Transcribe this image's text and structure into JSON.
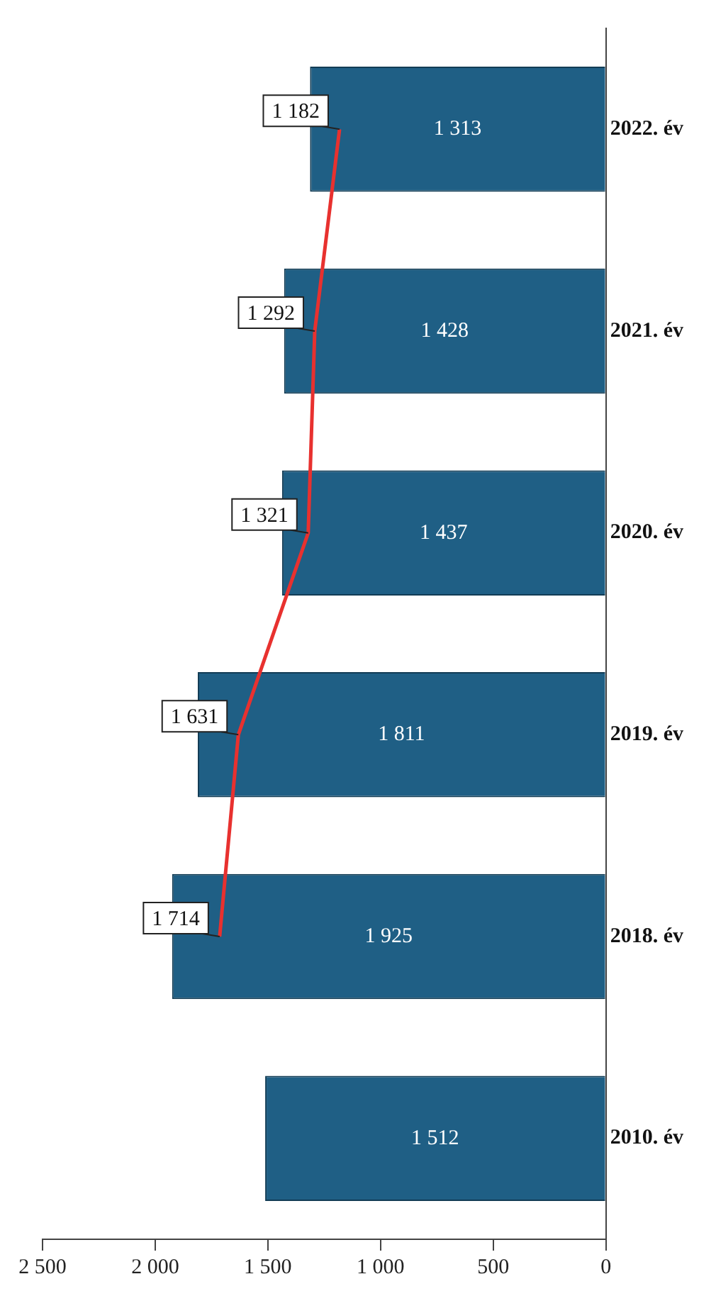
{
  "chart_data": {
    "type": "bar",
    "orientation": "horizontal",
    "categories": [
      "2022. év",
      "2021. év",
      "2020. év",
      "2019. év",
      "2018. év",
      "2010. év"
    ],
    "series": [
      {
        "color": "#1f5f85",
        "values": [
          1313,
          1428,
          1437,
          1811,
          1925,
          1512
        ]
      },
      {
        "type": "line",
        "color": "#e8312f",
        "values": [
          1182,
          1292,
          1321,
          1631,
          1714,
          null
        ]
      }
    ],
    "xlim": [
      2500,
      0
    ],
    "xticks": [
      {
        "value": 2500,
        "label": "2 500"
      },
      {
        "value": 2000,
        "label": "2 000"
      },
      {
        "value": 1500,
        "label": "1 500"
      },
      {
        "value": 1000,
        "label": "1 000"
      },
      {
        "value": 500,
        "label": "500"
      },
      0
    ],
    "data_labels": true,
    "grid": false,
    "legend": false,
    "marker": "none",
    "line_style": "solid"
  }
}
